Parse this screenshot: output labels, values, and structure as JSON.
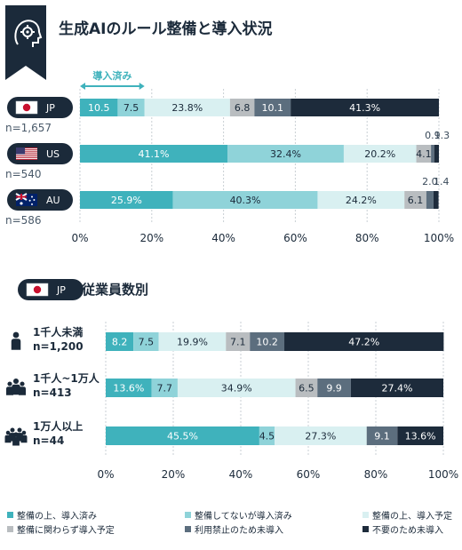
{
  "title": "生成AIのルール整備と導入状況",
  "colors": {
    "navy": "#1b2a3a",
    "s1": "#3fb2bc",
    "s2": "#8fd3d9",
    "s3": "#d9f0f1",
    "s4": "#b9bdc0",
    "s5": "#5c6e7e",
    "s6": "#1d2b3b",
    "grid": "#c9cfd4",
    "dark_text": "#1b2a3a",
    "light_text": "#ffffff"
  },
  "annotation": "導入済み",
  "section2_title": "従業員数別",
  "section2_flag": "JP",
  "chart_data": [
    {
      "type": "bar",
      "orientation": "horizontal",
      "stacked": true,
      "categories": [
        "JP",
        "US",
        "AU"
      ],
      "sample_sizes": [
        "n=1,657",
        "n=540",
        "n=586"
      ],
      "series": [
        {
          "name": "整備の上、導入済み",
          "values": [
            10.5,
            41.1,
            25.9
          ]
        },
        {
          "name": "整備してないが導入済み",
          "values": [
            7.5,
            32.4,
            40.3
          ]
        },
        {
          "name": "整備の上、導入予定",
          "values": [
            23.8,
            20.2,
            24.2
          ]
        },
        {
          "name": "整備に関わらず導入予定",
          "values": [
            6.8,
            4.1,
            6.1
          ]
        },
        {
          "name": "利用禁止のため未導入",
          "values": [
            10.1,
            0.9,
            2.0
          ]
        },
        {
          "name": "不要のため未導入",
          "values": [
            41.3,
            1.3,
            1.4
          ]
        }
      ],
      "labels": [
        [
          "10.5",
          "7.5",
          "23.8%",
          "6.8",
          "10.1",
          "41.3%"
        ],
        [
          "41.1%",
          "32.4%",
          "20.2%",
          "4.1",
          "0.9",
          "1.3"
        ],
        [
          "25.9%",
          "40.3%",
          "24.2%",
          "6.1",
          "2.0",
          "1.4"
        ]
      ],
      "xlim": [
        0,
        100
      ],
      "ticks": [
        "0%",
        "20%",
        "40%",
        "60%",
        "80%",
        "100%"
      ]
    },
    {
      "type": "bar",
      "orientation": "horizontal",
      "stacked": true,
      "categories": [
        "1千人未満",
        "1千人~1万人",
        "1万人以上"
      ],
      "sample_sizes": [
        "n=1,200",
        "n=413",
        "n=44"
      ],
      "series": [
        {
          "name": "整備の上、導入済み",
          "values": [
            8.2,
            13.6,
            45.5
          ]
        },
        {
          "name": "整備してないが導入済み",
          "values": [
            7.5,
            7.7,
            4.5
          ]
        },
        {
          "name": "整備の上、導入予定",
          "values": [
            19.9,
            34.9,
            27.3
          ]
        },
        {
          "name": "整備に関わらず導入予定",
          "values": [
            7.1,
            6.5,
            0
          ]
        },
        {
          "name": "利用禁止のため未導入",
          "values": [
            10.2,
            9.9,
            9.1
          ]
        },
        {
          "name": "不要のため未導入",
          "values": [
            47.2,
            27.4,
            13.6
          ]
        }
      ],
      "labels": [
        [
          "8.2",
          "7.5",
          "19.9%",
          "7.1",
          "10.2",
          "47.2%"
        ],
        [
          "13.6%",
          "7.7",
          "34.9%",
          "6.5",
          "9.9",
          "27.4%"
        ],
        [
          "45.5%",
          "4.5",
          "27.3%",
          "",
          "9.1",
          "13.6%"
        ]
      ],
      "xlim": [
        0,
        100
      ],
      "ticks": [
        "0%",
        "20%",
        "40%",
        "60%",
        "80%",
        "100%"
      ]
    }
  ],
  "legend": [
    "整備の上、導入済み",
    "整備してないが導入済み",
    "整備の上、導入予定",
    "整備に関わらず導入予定",
    "利用禁止のため未導入",
    "不要のため未導入"
  ]
}
